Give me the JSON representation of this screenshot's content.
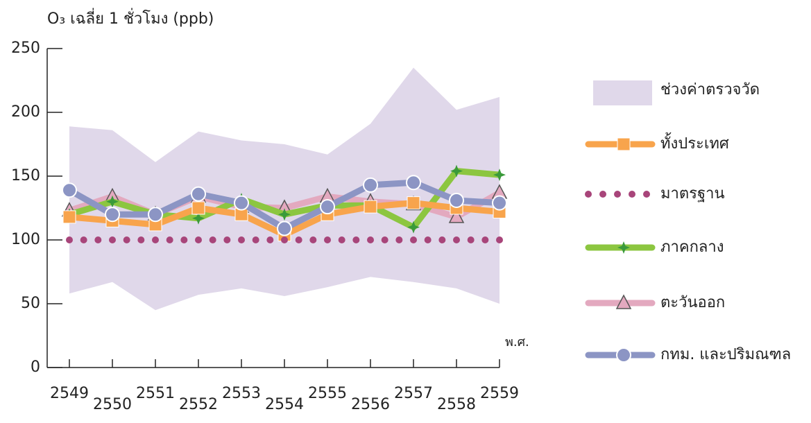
{
  "chart_data": {
    "type": "line",
    "title": "O₃ เฉลี่ย 1 ชั่วโมง (ppb)",
    "x_label": "พ.ศ.",
    "categories": [
      "2549",
      "2550",
      "2551",
      "2552",
      "2553",
      "2554",
      "2555",
      "2556",
      "2557",
      "2558",
      "2559"
    ],
    "ylim": [
      0,
      250
    ],
    "yticks": [
      0,
      50,
      100,
      150,
      200,
      250
    ],
    "range": {
      "name": "ช่วงค่าตรวจวัด",
      "color": "#e0d8ea",
      "upper": [
        189,
        186,
        161,
        185,
        178,
        175,
        167,
        191,
        235,
        202,
        212
      ],
      "lower": [
        58,
        67,
        45,
        57,
        62,
        56,
        63,
        71,
        67,
        62,
        50
      ]
    },
    "series": [
      {
        "name": "ทั้งประเทศ",
        "color": "#f8a44c",
        "marker": "square",
        "values": [
          118,
          115,
          112,
          125,
          120,
          104,
          120,
          126,
          129,
          125,
          122
        ]
      },
      {
        "name": "มาตรฐาน",
        "color": "#a8457a",
        "marker": "dots",
        "values": [
          100,
          100,
          100,
          100,
          100,
          100,
          100,
          100,
          100,
          100,
          100
        ]
      },
      {
        "name": "ภาคกลาง",
        "color": "#8cc640",
        "marker": "star",
        "values": [
          120,
          130,
          120,
          117,
          132,
          120,
          127,
          127,
          110,
          154,
          151
        ]
      },
      {
        "name": "ตะวันออก",
        "color": "#e3a9bf",
        "marker": "triangle",
        "values": [
          123,
          134,
          120,
          134,
          126,
          125,
          134,
          130,
          128,
          118,
          137
        ]
      },
      {
        "name": "กทม. และปริมณฑล",
        "color": "#8c95c4",
        "marker": "circle",
        "values": [
          139,
          120,
          120,
          136,
          129,
          109,
          126,
          143,
          145,
          131,
          129
        ]
      }
    ]
  }
}
